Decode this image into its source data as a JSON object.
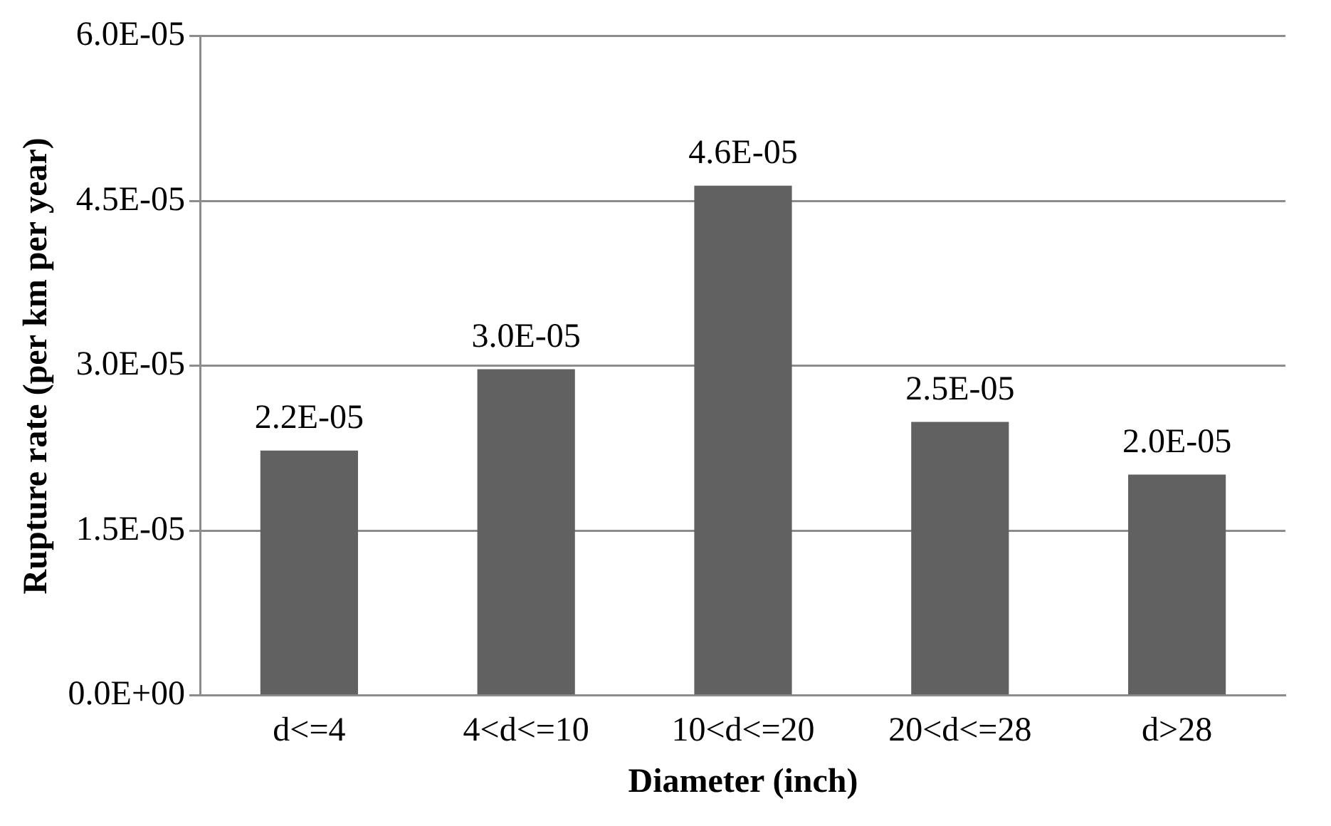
{
  "chart_data": {
    "type": "bar",
    "xlabel": "Diameter (inch)",
    "ylabel": "Rupture rate (per km per year)",
    "categories": [
      "d<=4",
      "4<d<=10",
      "10<d<=20",
      "20<d<=28",
      "d>28"
    ],
    "values": [
      2.23e-05,
      2.97e-05,
      4.64e-05,
      2.49e-05,
      2.01e-05
    ],
    "value_labels": [
      "2.2E-05",
      "3.0E-05",
      "4.6E-05",
      "2.5E-05",
      "2.0E-05"
    ],
    "color": "#616161",
    "ylim": [
      0,
      6e-05
    ],
    "yticks": [
      {
        "value": 0,
        "label": "0.0E+00"
      },
      {
        "value": 1.5e-05,
        "label": "1.5E-05"
      },
      {
        "value": 3e-05,
        "label": "3.0E-05"
      },
      {
        "value": 4.5e-05,
        "label": "4.5E-05"
      },
      {
        "value": 6e-05,
        "label": "6.0E-05"
      }
    ],
    "grid": "y",
    "legend": false
  }
}
